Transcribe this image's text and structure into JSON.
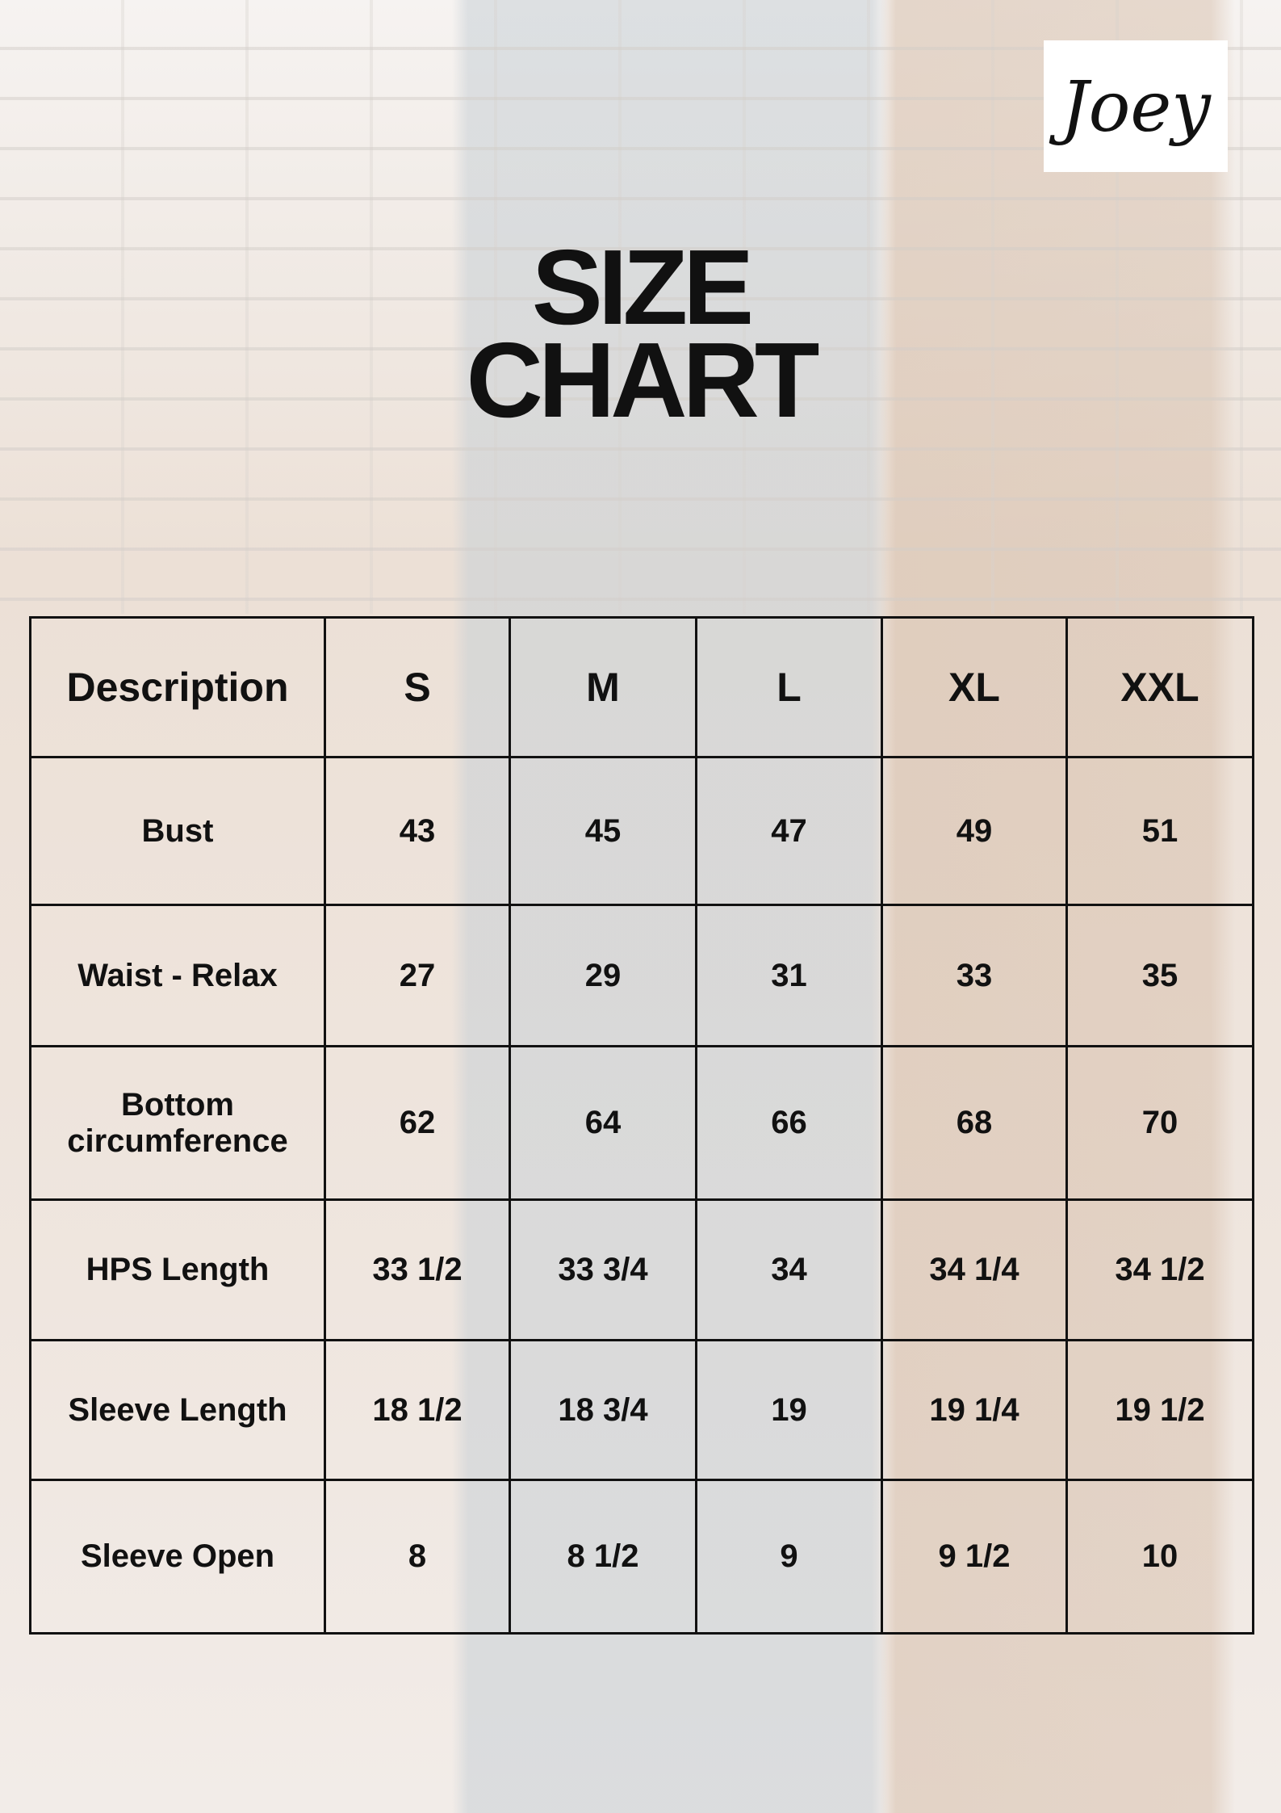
{
  "brand": {
    "logo_text": "Joey"
  },
  "title": {
    "line1": "SIZE",
    "line2": "CHART"
  },
  "table": {
    "headers": [
      "Description",
      "S",
      "M",
      "L",
      "XL",
      "XXL"
    ],
    "rows": [
      {
        "label": "Bust",
        "values": [
          "43",
          "45",
          "47",
          "49",
          "51"
        ]
      },
      {
        "label": "Waist - Relax",
        "values": [
          "27",
          "29",
          "31",
          "33",
          "35"
        ]
      },
      {
        "label": "Bottom circumference",
        "values": [
          "62",
          "64",
          "66",
          "68",
          "70"
        ]
      },
      {
        "label": "HPS Length",
        "values": [
          "33 1/2",
          "33 3/4",
          "34",
          "34 1/4",
          "34 1/2"
        ]
      },
      {
        "label": "Sleeve Length",
        "values": [
          "18 1/2",
          "18 3/4",
          "19",
          "19 1/4",
          "19 1/2"
        ]
      },
      {
        "label": "Sleeve Open",
        "values": [
          "8",
          "8 1/2",
          "9",
          "9 1/2",
          "10"
        ]
      }
    ]
  }
}
